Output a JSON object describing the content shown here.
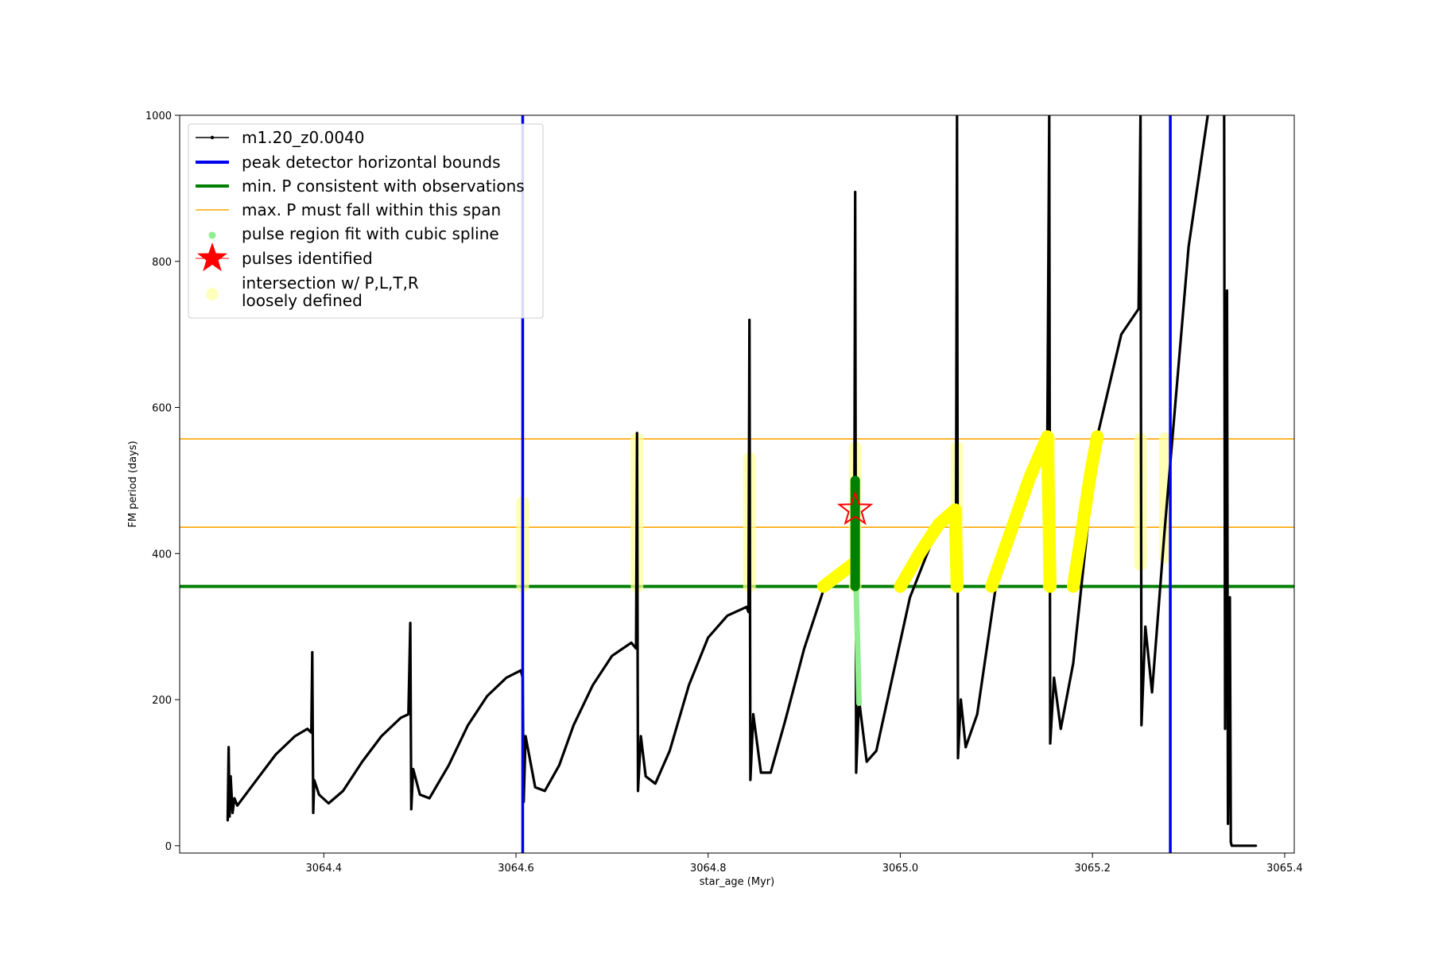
{
  "chart_data": {
    "type": "line",
    "title": "",
    "xlabel": "star_age (Myr)",
    "ylabel": "FM period (days)",
    "xlim": [
      3064.25,
      3065.41
    ],
    "ylim": [
      -10,
      1000
    ],
    "x_ticks": [
      {
        "value": 3064.4,
        "label": "3064.4"
      },
      {
        "value": 3064.6,
        "label": "3064.6"
      },
      {
        "value": 3064.8,
        "label": "3064.8"
      },
      {
        "value": 3065.0,
        "label": "3065.0"
      },
      {
        "value": 3065.2,
        "label": "3065.2"
      },
      {
        "value": 3065.4,
        "label": "3065.4"
      }
    ],
    "y_ticks": [
      {
        "value": 0,
        "label": "0"
      },
      {
        "value": 200,
        "label": "200"
      },
      {
        "value": 400,
        "label": "400"
      },
      {
        "value": 600,
        "label": "600"
      },
      {
        "value": 800,
        "label": "800"
      },
      {
        "value": 1000,
        "label": "1000"
      }
    ],
    "grid": false,
    "legend": {
      "position": "top-left",
      "entries": [
        {
          "label": "m1.20_z0.0040",
          "marker": "line-dot",
          "color": "#000000"
        },
        {
          "label": "peak detector horizontal bounds",
          "marker": "line",
          "color": "#0000ee"
        },
        {
          "label": "min. P consistent with observations",
          "marker": "line",
          "color": "#008000"
        },
        {
          "label": "max. P must fall within this span",
          "marker": "line",
          "color": "#ffa500"
        },
        {
          "label": "pulse region fit with cubic spline",
          "marker": "dot",
          "color": "#90ee90"
        },
        {
          "label": "pulses identified",
          "marker": "star",
          "color": "#ff0000"
        },
        {
          "label": "intersection w/ P,L,T,R",
          "label2": "loosely defined",
          "marker": "faint-dot",
          "color": "#ffff99"
        }
      ]
    },
    "vlines": [
      {
        "name": "peak detector horizontal bounds",
        "x": 3064.607,
        "color": "#0000ee"
      },
      {
        "name": "peak detector horizontal bounds",
        "x": 3065.281,
        "color": "#0000ee"
      }
    ],
    "hlines": [
      {
        "name": "min. P consistent with observations",
        "y": 355,
        "color": "#008000"
      },
      {
        "name": "max. P must fall within this span",
        "y": 436,
        "color": "#ffa500"
      },
      {
        "name": "max. P must fall within this span",
        "y": 557,
        "color": "#ffa500"
      }
    ],
    "series": [
      {
        "name": "m1.20_z0.0040",
        "color": "#000000",
        "segments": [
          [
            [
              3064.3,
              35
            ],
            [
              3064.301,
              135
            ],
            [
              3064.302,
              40
            ],
            [
              3064.303,
              95
            ],
            [
              3064.305,
              45
            ],
            [
              3064.307,
              65
            ],
            [
              3064.31,
              55
            ],
            [
              3064.33,
              90
            ],
            [
              3064.35,
              125
            ],
            [
              3064.37,
              150
            ],
            [
              3064.383,
              160
            ],
            [
              3064.387,
              155
            ],
            [
              3064.388,
              265
            ],
            [
              3064.389,
              45
            ],
            [
              3064.39,
              90
            ],
            [
              3064.395,
              70
            ],
            [
              3064.405,
              58
            ],
            [
              3064.42,
              75
            ],
            [
              3064.44,
              115
            ],
            [
              3064.46,
              150
            ],
            [
              3064.48,
              175
            ],
            [
              3064.488,
              180
            ],
            [
              3064.49,
              305
            ],
            [
              3064.491,
              50
            ],
            [
              3064.493,
              105
            ],
            [
              3064.5,
              70
            ],
            [
              3064.51,
              65
            ],
            [
              3064.53,
              110
            ],
            [
              3064.55,
              165
            ],
            [
              3064.57,
              205
            ],
            [
              3064.59,
              230
            ],
            [
              3064.605,
              240
            ],
            [
              3064.607,
              230
            ],
            [
              3064.608,
              60
            ],
            [
              3064.61,
              150
            ],
            [
              3064.62,
              80
            ],
            [
              3064.63,
              75
            ],
            [
              3064.645,
              110
            ],
            [
              3064.66,
              165
            ],
            [
              3064.68,
              220
            ],
            [
              3064.7,
              260
            ],
            [
              3064.72,
              278
            ],
            [
              3064.725,
              270
            ],
            [
              3064.726,
              565
            ],
            [
              3064.727,
              75
            ],
            [
              3064.73,
              150
            ],
            [
              3064.735,
              95
            ],
            [
              3064.745,
              85
            ],
            [
              3064.76,
              130
            ],
            [
              3064.78,
              220
            ],
            [
              3064.8,
              285
            ],
            [
              3064.82,
              315
            ],
            [
              3064.84,
              327
            ],
            [
              3064.842,
              320
            ],
            [
              3064.843,
              720
            ],
            [
              3064.844,
              90
            ],
            [
              3064.847,
              180
            ],
            [
              3064.855,
              100
            ],
            [
              3064.865,
              100
            ],
            [
              3064.88,
              170
            ],
            [
              3064.9,
              270
            ],
            [
              3064.92,
              350
            ],
            [
              3064.95,
              385
            ],
            [
              3064.952,
              380
            ],
            [
              3064.953,
              895
            ],
            [
              3064.954,
              100
            ],
            [
              3064.957,
              200
            ],
            [
              3064.965,
              115
            ],
            [
              3064.975,
              130
            ],
            [
              3064.99,
              220
            ],
            [
              3065.01,
              340
            ],
            [
              3065.04,
              440
            ],
            [
              3065.058,
              460
            ],
            [
              3065.059,
              1000
            ],
            [
              3065.06,
              120
            ],
            [
              3065.063,
              200
            ],
            [
              3065.068,
              135
            ],
            [
              3065.08,
              180
            ],
            [
              3065.1,
              360
            ],
            [
              3065.13,
              480
            ],
            [
              3065.153,
              560
            ],
            [
              3065.155,
              1000
            ],
            [
              3065.156,
              140
            ],
            [
              3065.16,
              230
            ],
            [
              3065.167,
              160
            ],
            [
              3065.18,
              250
            ],
            [
              3065.205,
              560
            ],
            [
              3065.23,
              700
            ],
            [
              3065.248,
              735
            ],
            [
              3065.25,
              1000
            ],
            [
              3065.251,
              165
            ],
            [
              3065.255,
              300
            ],
            [
              3065.262,
              210
            ],
            [
              3065.275,
              430
            ],
            [
              3065.3,
              820
            ],
            [
              3065.32,
              1000
            ]
          ],
          [
            [
              3065.337,
              1000
            ],
            [
              3065.338,
              160
            ],
            [
              3065.34,
              760
            ],
            [
              3065.341,
              30
            ],
            [
              3065.343,
              340
            ],
            [
              3065.344,
              5
            ],
            [
              3065.345,
              0
            ],
            [
              3065.37,
              0
            ]
          ]
        ]
      },
      {
        "name": "",
        "color": "#ffff00",
        "segments": [
          [
            [
              3064.92,
              355
            ],
            [
              3064.935,
              370
            ],
            [
              3064.95,
              385
            ]
          ],
          [
            [
              3065.0,
              355
            ],
            [
              3065.02,
              400
            ],
            [
              3065.04,
              440
            ],
            [
              3065.057,
              460
            ],
            [
              3065.059,
              355
            ]
          ],
          [
            [
              3065.095,
              355
            ],
            [
              3065.115,
              430
            ],
            [
              3065.135,
              505
            ],
            [
              3065.153,
              560
            ],
            [
              3065.156,
              355
            ]
          ],
          [
            [
              3065.18,
              355
            ],
            [
              3065.19,
              440
            ],
            [
              3065.198,
              510
            ],
            [
              3065.205,
              560
            ]
          ]
        ]
      },
      {
        "name": "pulse region fit with cubic spline",
        "color": "#90ee90",
        "segments": [
          [
            [
              3064.954,
              355
            ],
            [
              3064.955,
              300
            ],
            [
              3064.956,
              250
            ],
            [
              3064.957,
              195
            ]
          ]
        ]
      },
      {
        "name": "",
        "color": "#008000",
        "segments": [
          [
            [
              3064.953,
              355
            ],
            [
              3064.953,
              500
            ]
          ]
        ]
      },
      {
        "name": "intersection w/ P,L,T,R loosely defined",
        "color": "#ffff99",
        "segments": [
          [
            [
              3064.607,
              355
            ],
            [
              3064.607,
              470
            ]
          ],
          [
            [
              3064.726,
              355
            ],
            [
              3064.726,
              557
            ]
          ],
          [
            [
              3064.843,
              355
            ],
            [
              3064.843,
              530
            ]
          ],
          [
            [
              3064.953,
              355
            ],
            [
              3064.953,
              545
            ]
          ],
          [
            [
              3065.059,
              355
            ],
            [
              3065.059,
              545
            ]
          ],
          [
            [
              3065.155,
              355
            ],
            [
              3065.155,
              557
            ]
          ],
          [
            [
              3065.25,
              385
            ],
            [
              3065.25,
              557
            ]
          ],
          [
            [
              3065.276,
              395
            ],
            [
              3065.276,
              557
            ]
          ]
        ]
      }
    ],
    "markers": [
      {
        "name": "pulses identified",
        "shape": "star",
        "x": 3064.953,
        "y": 460,
        "color": "#ff0000"
      }
    ]
  }
}
